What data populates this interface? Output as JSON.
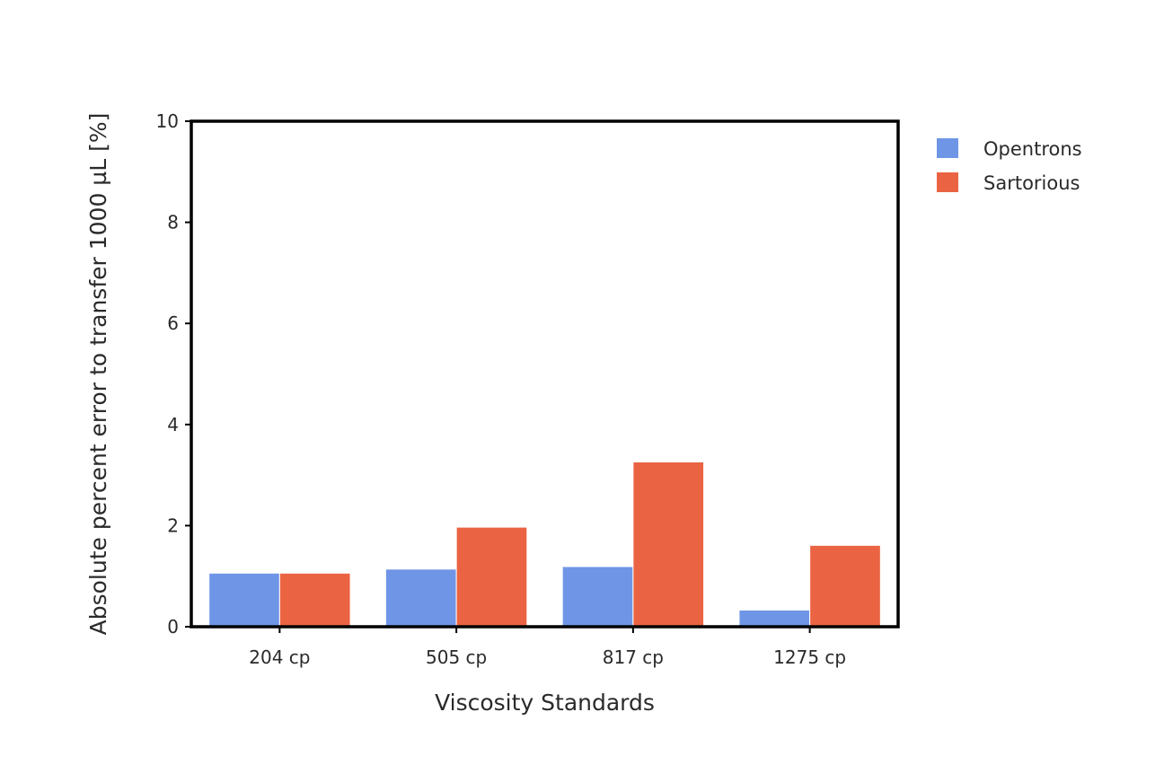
{
  "chart_data": {
    "type": "bar",
    "xlabel": "Viscosity Standards",
    "ylabel": "Absolute percent error to transfer 1000 µL [%]",
    "categories": [
      "204 cp",
      "505 cp",
      "817 cp",
      "1275 cp"
    ],
    "series": [
      {
        "name": "Opentrons",
        "color": "#6f95e6",
        "values": [
          1.06,
          1.14,
          1.19,
          0.33
        ]
      },
      {
        "name": "Sartorious",
        "color": "#ea6444",
        "values": [
          1.06,
          1.97,
          3.26,
          1.61
        ]
      }
    ],
    "ylim": [
      0,
      10
    ],
    "yticks": [
      0,
      2,
      4,
      6,
      8,
      10
    ],
    "legend_position": "top-right",
    "grid": false
  }
}
